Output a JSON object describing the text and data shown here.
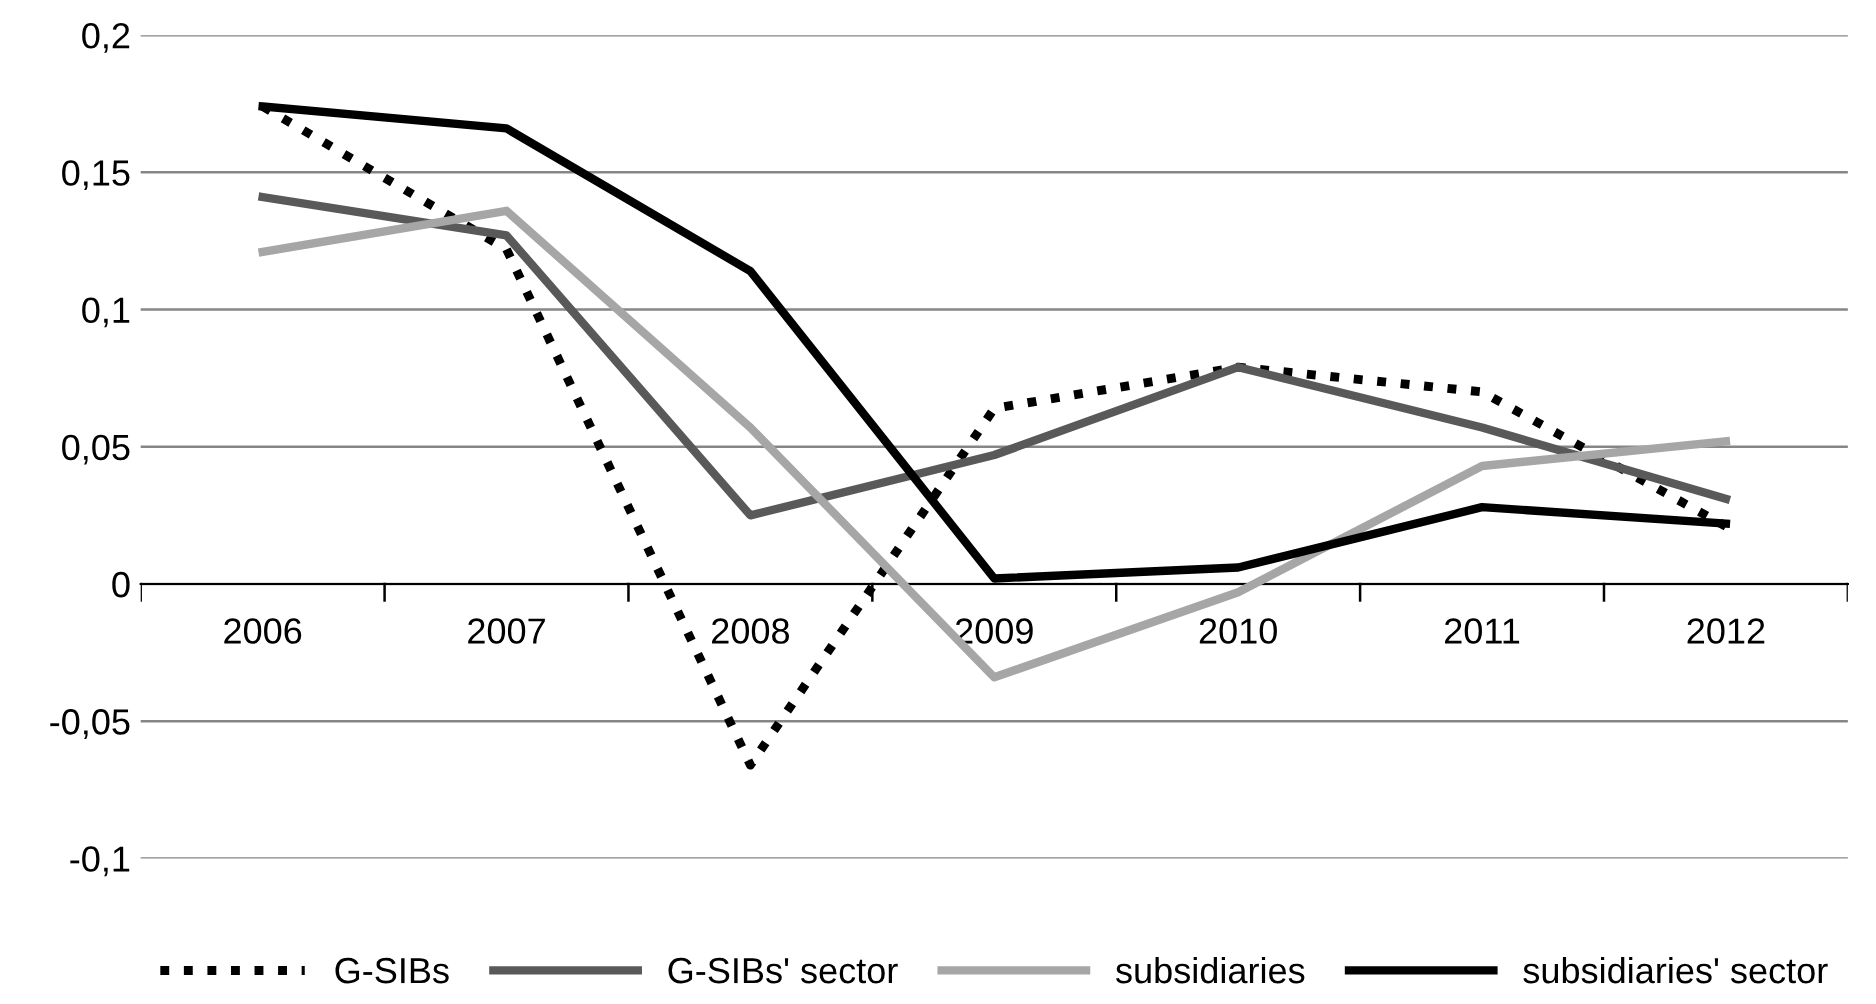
{
  "chart_data": {
    "type": "line",
    "categories": [
      "2006",
      "2007",
      "2008",
      "2009",
      "2010",
      "2011",
      "2012"
    ],
    "series": [
      {
        "name": "G-SIBs",
        "color": "#000000",
        "line_style": "dotted",
        "values": [
          0.174,
          0.122,
          -0.066,
          0.064,
          0.079,
          0.07,
          0.021
        ]
      },
      {
        "name": "G-SIBs' sector",
        "color": "#595959",
        "line_style": "solid",
        "values": [
          0.141,
          0.127,
          0.025,
          0.047,
          0.079,
          0.057,
          0.031
        ]
      },
      {
        "name": "subsidiaries",
        "color": "#a6a6a6",
        "line_style": "solid",
        "values": [
          0.121,
          0.136,
          0.057,
          -0.034,
          -0.003,
          0.043,
          0.052
        ]
      },
      {
        "name": "subsidiaries' sector",
        "color": "#000000",
        "line_style": "solid",
        "values": [
          0.174,
          0.166,
          0.114,
          0.002,
          0.006,
          0.028,
          0.022
        ]
      }
    ],
    "ylim": [
      -0.1,
      0.2
    ],
    "yticks": [
      {
        "value": -0.1,
        "label": "-0,1"
      },
      {
        "value": -0.05,
        "label": "-0,05"
      },
      {
        "value": 0,
        "label": "0"
      },
      {
        "value": 0.05,
        "label": "0,05"
      },
      {
        "value": 0.1,
        "label": "0,1"
      },
      {
        "value": 0.15,
        "label": "0,15"
      },
      {
        "value": 0.2,
        "label": "0,2"
      }
    ],
    "grid": "y",
    "legend": "bottom",
    "marker": "none"
  }
}
